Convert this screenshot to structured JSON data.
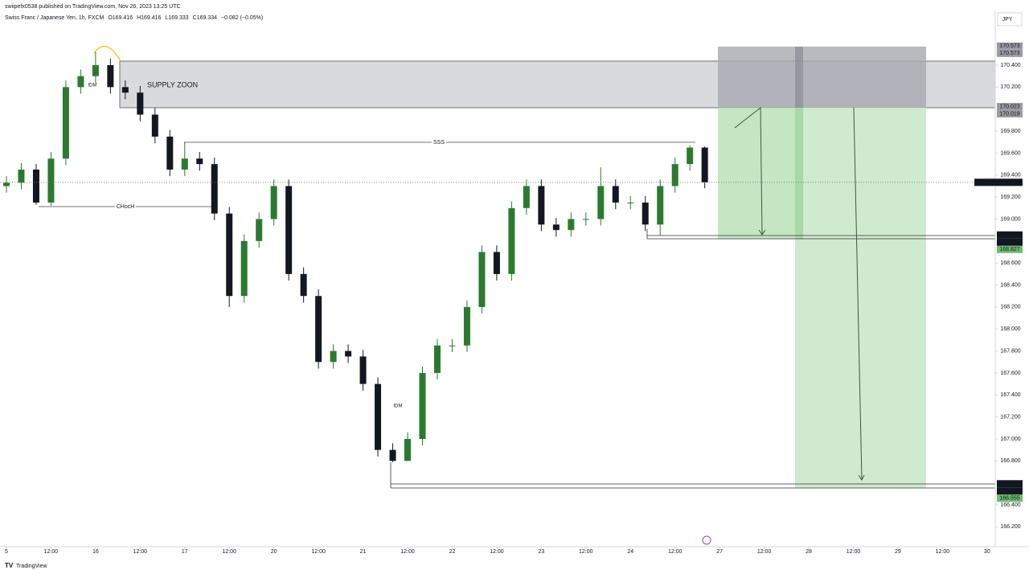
{
  "header": {
    "published": "swiipefx0538 published on TradingView.com, Nov 26, 2023 13:25 UTC",
    "currency": "JPY",
    "footer": "TradingView"
  },
  "chart_data": {
    "type": "candlestick",
    "title": "Swiss Franc / Japanese Yen, 1h, FXCM",
    "legend": {
      "open": "O169.416",
      "high": "H169.416",
      "low": "L169.333",
      "close": "C169.334",
      "change": "−0.082 (−0.05%)"
    },
    "annotations": {
      "supply": "SUPPLY ZOON",
      "sss": "SSS",
      "choch": "CHocH",
      "idm1": "IDM",
      "idm2": "IDM"
    },
    "up_color": "#2b7a2f",
    "down_color": "#131722",
    "x": [
      0,
      4,
      8,
      12,
      16,
      20,
      24,
      28,
      32,
      36,
      40,
      44,
      48,
      52,
      56,
      60,
      64,
      68,
      72,
      76,
      80,
      84,
      88,
      92,
      96,
      100,
      104,
      108,
      112,
      116,
      120,
      124,
      128,
      132,
      136,
      140,
      144,
      148,
      152,
      156,
      160,
      164,
      168,
      172,
      176,
      180,
      184,
      188
    ],
    "open": [
      169.3,
      169.33,
      169.45,
      169.15,
      169.55,
      170.2,
      170.3,
      170.4,
      170.2,
      170.15,
      169.95,
      169.75,
      169.45,
      169.55,
      169.5,
      169.05,
      168.3,
      168.8,
      169.0,
      169.3,
      168.5,
      168.3,
      167.7,
      167.8,
      167.75,
      167.5,
      166.9,
      166.8,
      167.0,
      167.6,
      167.85,
      167.85,
      168.2,
      168.7,
      168.5,
      169.1,
      169.3,
      168.95,
      168.9,
      169.0,
      169.0,
      169.3,
      169.15,
      169.15,
      168.95,
      169.3,
      169.5,
      169.65
    ],
    "high": [
      169.39,
      169.51,
      169.5,
      169.61,
      170.26,
      170.36,
      170.52,
      170.46,
      170.26,
      170.21,
      170.01,
      169.81,
      169.7,
      169.61,
      169.56,
      169.11,
      168.86,
      169.06,
      169.36,
      169.36,
      168.56,
      168.36,
      167.86,
      167.86,
      167.81,
      167.56,
      166.96,
      167.06,
      167.66,
      167.91,
      167.91,
      168.26,
      168.76,
      168.76,
      169.16,
      169.36,
      169.36,
      169.01,
      169.06,
      169.06,
      169.47,
      169.36,
      169.21,
      169.21,
      169.36,
      169.56,
      169.67,
      169.66
    ],
    "low": [
      169.24,
      169.27,
      169.13,
      169.12,
      169.49,
      170.14,
      170.24,
      170.14,
      170.09,
      169.89,
      169.69,
      169.39,
      169.39,
      169.44,
      168.99,
      168.2,
      168.24,
      168.74,
      168.94,
      168.44,
      168.24,
      167.64,
      167.64,
      167.69,
      167.44,
      166.84,
      166.79,
      166.8,
      166.94,
      167.54,
      167.79,
      167.79,
      168.14,
      168.44,
      168.44,
      169.04,
      168.89,
      168.84,
      168.84,
      168.94,
      168.94,
      169.09,
      169.09,
      168.89,
      168.85,
      169.24,
      169.44,
      169.28
    ],
    "close": [
      169.33,
      169.45,
      169.15,
      169.55,
      170.2,
      170.3,
      170.4,
      170.2,
      170.15,
      169.95,
      169.75,
      169.45,
      169.55,
      169.5,
      169.05,
      168.3,
      168.8,
      169.0,
      169.3,
      168.5,
      168.3,
      167.7,
      167.8,
      167.75,
      167.5,
      166.9,
      166.8,
      167.0,
      167.6,
      167.85,
      167.85,
      168.2,
      168.7,
      168.5,
      169.1,
      169.3,
      168.95,
      168.9,
      169.0,
      169.0,
      169.3,
      169.15,
      169.15,
      168.95,
      169.3,
      169.5,
      169.65,
      169.334
    ],
    "xlim": [
      -1.73,
      266.2
    ],
    "xticks": [
      {
        "value": 0,
        "label": "5"
      },
      {
        "value": 12,
        "label": "12:00"
      },
      {
        "value": 24,
        "label": "16"
      },
      {
        "value": 36,
        "label": "12:00"
      },
      {
        "value": 48,
        "label": "17"
      },
      {
        "value": 60,
        "label": "12:00"
      },
      {
        "value": 72,
        "label": "20"
      },
      {
        "value": 84,
        "label": "12:00"
      },
      {
        "value": 96,
        "label": "21"
      },
      {
        "value": 108,
        "label": "12:00"
      },
      {
        "value": 120,
        "label": "22"
      },
      {
        "value": 132,
        "label": "12:00"
      },
      {
        "value": 144,
        "label": "23"
      },
      {
        "value": 156,
        "label": "12:00"
      },
      {
        "value": 168,
        "label": "24"
      },
      {
        "value": 180,
        "label": "12:00"
      },
      {
        "value": 192,
        "label": "27"
      },
      {
        "value": 204,
        "label": "12:00"
      },
      {
        "value": 216,
        "label": "28"
      },
      {
        "value": 228,
        "label": "12:00"
      },
      {
        "value": 240,
        "label": "29"
      },
      {
        "value": 252,
        "label": "12:00"
      },
      {
        "value": 264,
        "label": "30"
      }
    ],
    "ylim": [
      166.02,
      170.89
    ],
    "yticks": [
      {
        "value": 170.4,
        "label": "170.400"
      },
      {
        "value": 170.2,
        "label": "170.200"
      },
      {
        "value": 169.8,
        "label": "169.800"
      },
      {
        "value": 169.6,
        "label": "169.600"
      },
      {
        "value": 169.4,
        "label": "169.400"
      },
      {
        "value": 169.2,
        "label": "169.200"
      },
      {
        "value": 169.0,
        "label": "169.000"
      },
      {
        "value": 168.6,
        "label": "168.600"
      },
      {
        "value": 168.4,
        "label": "168.400"
      },
      {
        "value": 168.2,
        "label": "168.200"
      },
      {
        "value": 168.0,
        "label": "168.000"
      },
      {
        "value": 167.8,
        "label": "167.800"
      },
      {
        "value": 167.6,
        "label": "167.600"
      },
      {
        "value": 167.4,
        "label": "167.400"
      },
      {
        "value": 167.2,
        "label": "167.200"
      },
      {
        "value": 167.0,
        "label": "167.000"
      },
      {
        "value": 166.8,
        "label": "166.800"
      },
      {
        "value": 166.4,
        "label": "166.400"
      },
      {
        "value": 166.2,
        "label": "166.200"
      }
    ],
    "current_symbol": "CHFJPY",
    "current_price": 169.334,
    "price_labels": [
      {
        "value": 170.573,
        "color": "#9a9aa3"
      },
      {
        "value": 170.573,
        "color": "#9a9aa3"
      },
      {
        "value": 170.023,
        "color": "#9a9aa3"
      },
      {
        "value": 170.019,
        "color": "#9a9aa3"
      },
      {
        "value": 168.855,
        "color": "#131722"
      },
      {
        "value": 168.827,
        "color": "#131722"
      },
      {
        "value": 168.827,
        "color": "#6dbb6d"
      },
      {
        "value": 166.592,
        "color": "#131722"
      },
      {
        "value": 166.555,
        "color": "#131722"
      },
      {
        "value": 166.555,
        "color": "#6dbb6d"
      }
    ]
  }
}
